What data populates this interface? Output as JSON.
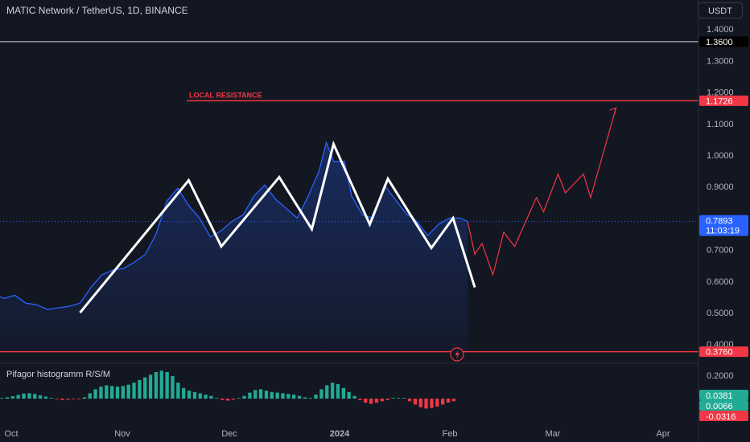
{
  "header": {
    "title": "MATIC Network / TetherUS, 1D, BINANCE",
    "currency": "USDT"
  },
  "indicator": {
    "label": "Pifagor histogramm R/S/M"
  },
  "colors": {
    "background": "#131722",
    "price_line": "#2962ff",
    "pattern": "#ffffff",
    "projection": "#f23645",
    "resistance": "#f23645",
    "hist_positive": "#22ab94",
    "hist_negative": "#f23645"
  },
  "icons": [
    "lightning-icon"
  ],
  "chart_data": [
    {
      "type": "line",
      "subtype": "price-chart",
      "y_axis_ticks": [
        "1.4000",
        "1.3000",
        "1.2000",
        "1.1000",
        "1.0000",
        "0.9000",
        "0.7000",
        "0.6000",
        "0.5000",
        "0.4000"
      ],
      "x_axis_labels": [
        "Oct",
        "Nov",
        "Dec",
        "2024",
        "Feb",
        "Mar",
        "Apr"
      ],
      "ylim": [
        0.37,
        1.44
      ],
      "price_series": [
        {
          "x": "2023-09-20",
          "y": 0.52
        },
        {
          "x": "2023-09-23",
          "y": 0.545
        },
        {
          "x": "2023-09-26",
          "y": 0.56
        },
        {
          "x": "2023-09-29",
          "y": 0.545
        },
        {
          "x": "2023-10-02",
          "y": 0.555
        },
        {
          "x": "2023-10-05",
          "y": 0.53
        },
        {
          "x": "2023-10-08",
          "y": 0.525
        },
        {
          "x": "2023-10-11",
          "y": 0.51
        },
        {
          "x": "2023-10-14",
          "y": 0.515
        },
        {
          "x": "2023-10-17",
          "y": 0.52
        },
        {
          "x": "2023-10-20",
          "y": 0.53
        },
        {
          "x": "2023-10-23",
          "y": 0.58
        },
        {
          "x": "2023-10-26",
          "y": 0.62
        },
        {
          "x": "2023-10-29",
          "y": 0.635
        },
        {
          "x": "2023-11-01",
          "y": 0.64
        },
        {
          "x": "2023-11-04",
          "y": 0.66
        },
        {
          "x": "2023-11-07",
          "y": 0.685
        },
        {
          "x": "2023-11-10",
          "y": 0.75
        },
        {
          "x": "2023-11-13",
          "y": 0.855
        },
        {
          "x": "2023-11-16",
          "y": 0.895
        },
        {
          "x": "2023-11-19",
          "y": 0.84
        },
        {
          "x": "2023-11-22",
          "y": 0.8
        },
        {
          "x": "2023-11-25",
          "y": 0.74
        },
        {
          "x": "2023-11-28",
          "y": 0.76
        },
        {
          "x": "2023-12-01",
          "y": 0.79
        },
        {
          "x": "2023-12-04",
          "y": 0.81
        },
        {
          "x": "2023-12-07",
          "y": 0.87
        },
        {
          "x": "2023-12-10",
          "y": 0.905
        },
        {
          "x": "2023-12-13",
          "y": 0.86
        },
        {
          "x": "2023-12-16",
          "y": 0.83
        },
        {
          "x": "2023-12-19",
          "y": 0.8
        },
        {
          "x": "2023-12-22",
          "y": 0.87
        },
        {
          "x": "2023-12-25",
          "y": 0.95
        },
        {
          "x": "2023-12-27",
          "y": 1.04
        },
        {
          "x": "2023-12-29",
          "y": 0.98
        },
        {
          "x": "2024-01-01",
          "y": 0.98
        },
        {
          "x": "2024-01-03",
          "y": 0.87
        },
        {
          "x": "2024-01-06",
          "y": 0.81
        },
        {
          "x": "2024-01-09",
          "y": 0.8
        },
        {
          "x": "2024-01-12",
          "y": 0.905
        },
        {
          "x": "2024-01-15",
          "y": 0.86
        },
        {
          "x": "2024-01-18",
          "y": 0.815
        },
        {
          "x": "2024-01-21",
          "y": 0.79
        },
        {
          "x": "2024-01-24",
          "y": 0.745
        },
        {
          "x": "2024-01-27",
          "y": 0.78
        },
        {
          "x": "2024-01-30",
          "y": 0.8
        },
        {
          "x": "2024-02-02",
          "y": 0.8
        },
        {
          "x": "2024-02-04",
          "y": 0.7893
        }
      ],
      "pattern_series": [
        {
          "x": "2023-10-20",
          "y": 0.5
        },
        {
          "x": "2023-11-19",
          "y": 0.92
        },
        {
          "x": "2023-11-28",
          "y": 0.71
        },
        {
          "x": "2023-12-14",
          "y": 0.93
        },
        {
          "x": "2023-12-23",
          "y": 0.765
        },
        {
          "x": "2023-12-29",
          "y": 1.035
        },
        {
          "x": "2024-01-08",
          "y": 0.78
        },
        {
          "x": "2024-01-13",
          "y": 0.925
        },
        {
          "x": "2024-01-25",
          "y": 0.705
        },
        {
          "x": "2024-01-31",
          "y": 0.8
        },
        {
          "x": "2024-02-06",
          "y": 0.58
        }
      ],
      "projection_series": [
        {
          "x": "2024-02-04",
          "y": 0.79
        },
        {
          "x": "2024-02-06",
          "y": 0.685
        },
        {
          "x": "2024-02-08",
          "y": 0.72
        },
        {
          "x": "2024-02-11",
          "y": 0.62
        },
        {
          "x": "2024-02-14",
          "y": 0.755
        },
        {
          "x": "2024-02-17",
          "y": 0.71
        },
        {
          "x": "2024-02-23",
          "y": 0.865
        },
        {
          "x": "2024-02-25",
          "y": 0.82
        },
        {
          "x": "2024-02-29",
          "y": 0.94
        },
        {
          "x": "2024-03-02",
          "y": 0.88
        },
        {
          "x": "2024-03-07",
          "y": 0.94
        },
        {
          "x": "2024-03-09",
          "y": 0.865
        },
        {
          "x": "2024-03-16",
          "y": 1.15
        }
      ],
      "resistance_level": {
        "label": "LOCAL RESISTANCE",
        "value": 1.1726,
        "value_text": "1.1726"
      },
      "support_level": {
        "value": 0.376,
        "value_text": "0.3760"
      },
      "upper_mark": {
        "value": 1.36,
        "value_text": "1.3600"
      },
      "current_price": {
        "value": 0.7893,
        "value_text": "0.7893",
        "countdown": "11:03:19"
      }
    },
    {
      "type": "bar",
      "subtype": "histogram",
      "name": "Pifagor histogramm R/S/M",
      "y_axis_ticks": [
        "0.2000"
      ],
      "badges": [
        "0.0381",
        "0.0066",
        "-0.0316"
      ],
      "values": [
        0.0,
        0.01,
        0.018,
        0.028,
        0.038,
        0.04,
        0.035,
        0.025,
        0.015,
        0.005,
        -0.005,
        -0.01,
        -0.008,
        -0.005,
        -0.002,
        0.01,
        0.04,
        0.07,
        0.09,
        0.1,
        0.095,
        0.09,
        0.095,
        0.105,
        0.12,
        0.14,
        0.16,
        0.18,
        0.2,
        0.21,
        0.2,
        0.17,
        0.12,
        0.08,
        0.06,
        0.05,
        0.04,
        0.03,
        0.02,
        0.0,
        -0.01,
        -0.015,
        -0.008,
        0.0,
        0.02,
        0.045,
        0.065,
        0.07,
        0.06,
        0.05,
        0.045,
        0.04,
        0.035,
        0.03,
        0.02,
        0.01,
        0.0,
        0.03,
        0.07,
        0.1,
        0.12,
        0.11,
        0.08,
        0.05,
        0.02,
        -0.01,
        -0.03,
        -0.04,
        -0.03,
        -0.02,
        -0.01,
        0.0,
        0.005,
        0.0,
        -0.02,
        -0.045,
        -0.065,
        -0.075,
        -0.07,
        -0.06,
        -0.045,
        -0.03,
        -0.02
      ]
    }
  ]
}
